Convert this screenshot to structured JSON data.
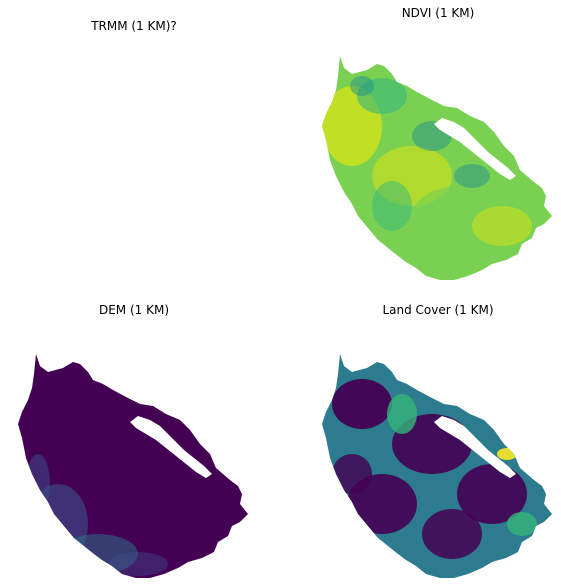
{
  "chart_data": [
    {
      "type": "heatmap",
      "title": "TRMM (1 KM)?",
      "colormap": "viridis",
      "grid": false,
      "axes": "off",
      "note_empty": true
    },
    {
      "type": "heatmap",
      "title": "NDVI (1 KM)",
      "colormap": "viridis",
      "grid": false,
      "axes": "off",
      "dominant_colors": [
        "#c8e020",
        "#7ad151",
        "#35b779",
        "#21918c"
      ]
    },
    {
      "type": "heatmap",
      "title": "DEM (1 KM)",
      "colormap": "viridis",
      "grid": false,
      "axes": "off",
      "dominant_colors": [
        "#440154",
        "#3b528b",
        "#2a788e"
      ]
    },
    {
      "type": "heatmap",
      "title": "Land Cover (1 KM)",
      "colormap": "viridis",
      "grid": false,
      "axes": "off",
      "dominant_colors": [
        "#440154",
        "#2c7b8e",
        "#35b779",
        "#fde725"
      ]
    }
  ]
}
